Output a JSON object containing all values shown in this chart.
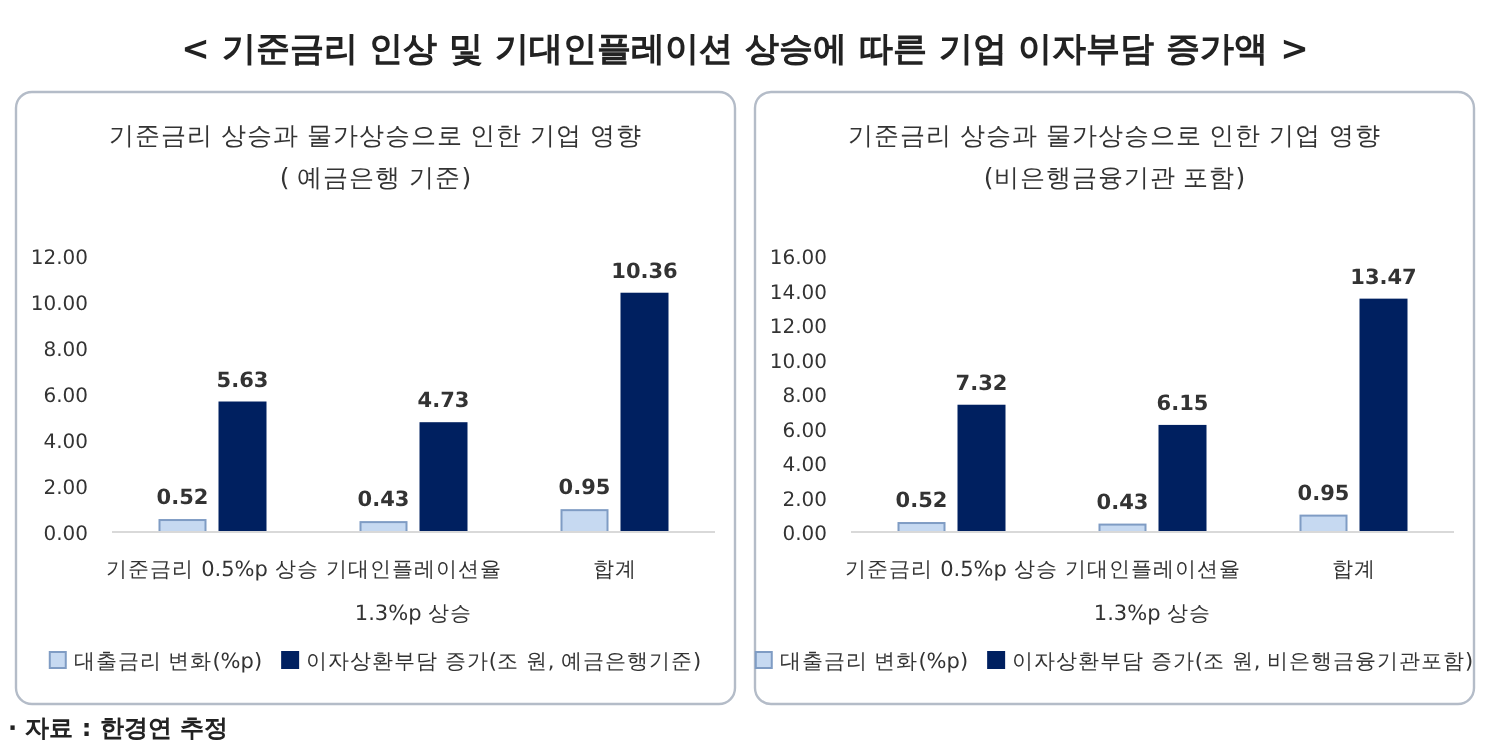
{
  "chart_data": [
    {
      "type": "bar",
      "title": "기준금리 상승과 물가상승으로 인한 기업 영향",
      "subtitle": "( 예금은행 기준)",
      "annotations": [
        "< 기준금리 인상 및 기대인플레이션 상승에 따른 기업 이자부담 증가액 >",
        "· 자료 : 한경연 추정"
      ],
      "categories": [
        "기준금리 0.5%p 상승",
        "기대인플레이션율 1.3%p 상승",
        "합계"
      ],
      "series": [
        {
          "name": "대출금리 변화(%p)",
          "color": "#c6d9f1",
          "values": [
            0.52,
            0.43,
            0.95
          ]
        },
        {
          "name": "이자상환부담 증가(조 원, 예금은행기준)",
          "color": "#002060",
          "values": [
            5.63,
            4.73,
            10.36
          ]
        }
      ],
      "ylim": [
        0,
        12
      ],
      "yticks": [
        {
          "value": 0,
          "label": "0.00"
        },
        {
          "value": 2,
          "label": "2.00"
        },
        {
          "value": 4,
          "label": "4.00"
        },
        {
          "value": 6,
          "label": "6.00"
        },
        {
          "value": 8,
          "label": "8.00"
        },
        {
          "value": 10,
          "label": "10.00"
        },
        {
          "value": 12,
          "label": "12.00"
        }
      ],
      "data_labels": true,
      "legend": "bottom",
      "grid": false
    },
    {
      "type": "bar",
      "title": "기준금리 상승과 물가상승으로 인한 기업 영향",
      "subtitle": "(비은행금융기관 포함)",
      "categories": [
        "기준금리 0.5%p 상승",
        "기대인플레이션율 1.3%p 상승",
        "합계"
      ],
      "series": [
        {
          "name": "대출금리 변화(%p)",
          "color": "#c6d9f1",
          "values": [
            0.52,
            0.43,
            0.95
          ]
        },
        {
          "name": "이자상환부담 증가(조 원, 비은행금융기관포함)",
          "color": "#002060",
          "values": [
            7.32,
            6.15,
            13.47
          ]
        }
      ],
      "ylim": [
        0,
        16
      ],
      "yticks": [
        {
          "value": 0,
          "label": "0.00"
        },
        {
          "value": 2,
          "label": "2.00"
        },
        {
          "value": 4,
          "label": "4.00"
        },
        {
          "value": 6,
          "label": "6.00"
        },
        {
          "value": 8,
          "label": "8.00"
        },
        {
          "value": 10,
          "label": "10.00"
        },
        {
          "value": 12,
          "label": "12.00"
        },
        {
          "value": 14,
          "label": "14.00"
        },
        {
          "value": 16,
          "label": "16.00"
        }
      ],
      "data_labels": true,
      "legend": "bottom",
      "grid": false
    }
  ]
}
